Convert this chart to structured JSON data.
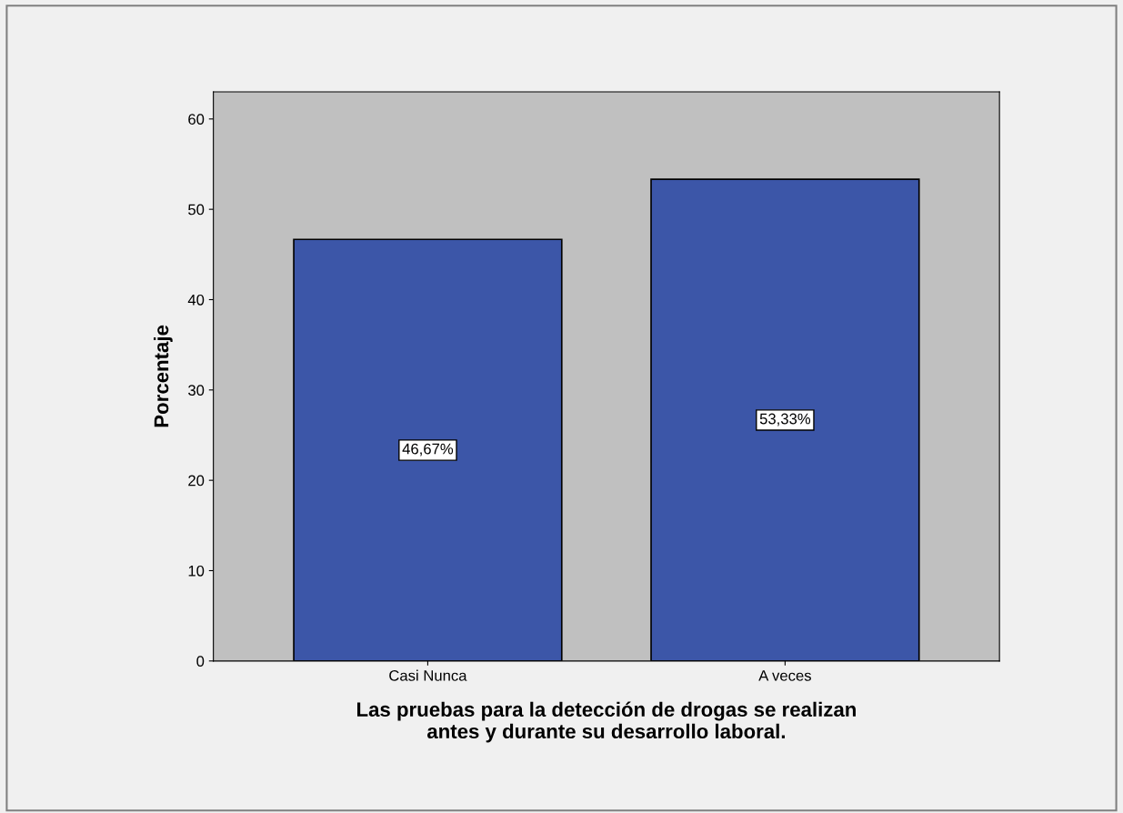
{
  "chart_data": {
    "type": "bar",
    "categories": [
      "Casi Nunca",
      "A veces"
    ],
    "values": [
      46.67,
      53.33
    ],
    "value_labels": [
      "46,67%",
      "53,33%"
    ],
    "color": "#3c56a8",
    "xlabel": "Las pruebas para la detección de drogas se realizan\nantes y durante su desarrollo laboral.",
    "ylabel": "Porcentaje",
    "ylim": [
      0,
      63
    ],
    "yticks": [
      0,
      10,
      20,
      30,
      40,
      50,
      60
    ],
    "grid": false,
    "legend": false
  }
}
